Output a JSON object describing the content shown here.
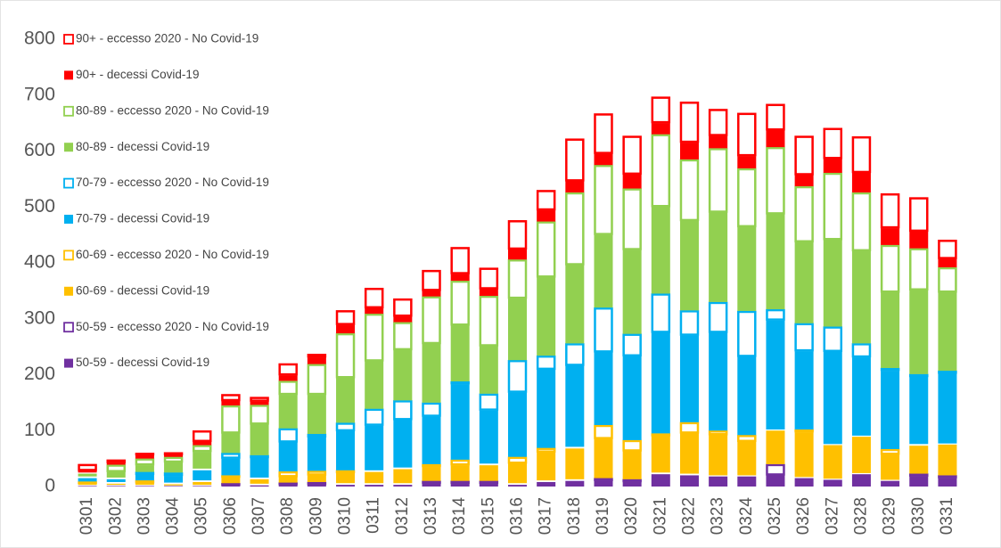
{
  "chart_data": {
    "type": "bar",
    "stacked": true,
    "categories": [
      "0301",
      "0302",
      "0303",
      "0304",
      "0305",
      "0306",
      "0307",
      "0308",
      "0309",
      "0310",
      "0311",
      "0312",
      "0313",
      "0314",
      "0315",
      "0316",
      "0317",
      "0318",
      "0319",
      "0320",
      "0321",
      "0322",
      "0323",
      "0324",
      "0325",
      "0326",
      "0327",
      "0328",
      "0329",
      "0330",
      "0331"
    ],
    "ylim": [
      0,
      800
    ],
    "yticks": [
      0,
      100,
      200,
      300,
      400,
      500,
      600,
      700,
      800
    ],
    "series": [
      {
        "name": "50-59 - decessi Covid-19",
        "color": "#7030a0",
        "style": "filled",
        "values": [
          1,
          1,
          1,
          1,
          1,
          2,
          2,
          3,
          3,
          3,
          3,
          3,
          5,
          5,
          5,
          3,
          8,
          10,
          10,
          8,
          22,
          20,
          18,
          18,
          20,
          15,
          12,
          22,
          10,
          18,
          15
        ]
      },
      {
        "name": "50-59 - eccesso 2020 - No Covid-19",
        "color": "#7030a0",
        "style": "outline",
        "values": [
          2,
          2,
          2,
          1,
          2,
          4,
          3,
          4,
          5,
          3,
          3,
          3,
          5,
          5,
          5,
          3,
          3,
          3,
          5,
          5,
          3,
          3,
          2,
          2,
          20,
          2,
          2,
          2,
          2,
          5,
          5
        ]
      },
      {
        "name": "60-69 - decessi Covid-19",
        "color": "#ffc000",
        "style": "filled",
        "values": [
          2,
          2,
          3,
          2,
          5,
          10,
          8,
          10,
          12,
          18,
          20,
          25,
          25,
          28,
          28,
          35,
          50,
          55,
          70,
          50,
          65,
          72,
          72,
          60,
          60,
          80,
          60,
          65,
          45,
          50,
          55
        ]
      },
      {
        "name": "60-69 - eccesso 2020 - No Covid-19",
        "color": "#ffc000",
        "style": "outline",
        "values": [
          4,
          3,
          5,
          3,
          3,
          4,
          3,
          10,
          8,
          5,
          3,
          3,
          5,
          10,
          3,
          12,
          8,
          3,
          25,
          20,
          5,
          20,
          8,
          12,
          2,
          5,
          2,
          2,
          10,
          3,
          2
        ]
      },
      {
        "name": "70-79 - decessi Covid-19",
        "color": "#00b0f0",
        "style": "filled",
        "values": [
          6,
          5,
          10,
          12,
          18,
          30,
          35,
          52,
          60,
          70,
          80,
          85,
          85,
          135,
          95,
          115,
          140,
          145,
          130,
          150,
          180,
          155,
          175,
          140,
          195,
          140,
          165,
          140,
          140,
          120,
          125
        ]
      },
      {
        "name": "70-79 - eccesso 2020 - No Covid-19",
        "color": "#00b0f0",
        "style": "outline",
        "values": [
          3,
          3,
          5,
          6,
          3,
          10,
          5,
          25,
          6,
          15,
          30,
          35,
          25,
          5,
          30,
          58,
          25,
          40,
          80,
          40,
          70,
          45,
          55,
          82,
          20,
          50,
          45,
          25,
          5,
          5,
          5
        ]
      },
      {
        "name": "80-89 - decessi Covid-19",
        "color": "#92d050",
        "style": "filled",
        "values": [
          5,
          10,
          12,
          18,
          30,
          35,
          55,
          60,
          70,
          80,
          85,
          90,
          105,
          100,
          85,
          110,
          140,
          140,
          130,
          150,
          155,
          160,
          160,
          150,
          170,
          145,
          155,
          165,
          135,
          150,
          140
        ]
      },
      {
        "name": "80-89 - eccesso 2020 - No Covid-19",
        "color": "#92d050",
        "style": "outline",
        "values": [
          2,
          13,
          12,
          10,
          12,
          50,
          35,
          25,
          55,
          80,
          85,
          50,
          85,
          80,
          90,
          70,
          100,
          130,
          125,
          110,
          130,
          110,
          115,
          105,
          120,
          100,
          120,
          105,
          85,
          75,
          45
        ]
      },
      {
        "name": "90+ - decessi Covid-19",
        "color": "#ff0000",
        "style": "filled",
        "values": [
          3,
          3,
          6,
          3,
          6,
          8,
          6,
          10,
          12,
          15,
          10,
          10,
          10,
          12,
          12,
          18,
          20,
          20,
          20,
          25,
          20,
          30,
          22,
          22,
          30,
          20,
          25,
          35,
          30,
          30,
          15
        ]
      },
      {
        "name": "90+ - eccesso 2020 - No Covid-19",
        "color": "#ff0000",
        "style": "outline",
        "values": [
          12,
          6,
          4,
          5,
          20,
          12,
          8,
          21,
          6,
          26,
          36,
          32,
          37,
          48,
          38,
          52,
          36,
          76,
          72,
          69,
          47,
          73,
          48,
          77,
          47,
          70,
          55,
          65,
          62,
          61,
          34
        ]
      }
    ]
  }
}
